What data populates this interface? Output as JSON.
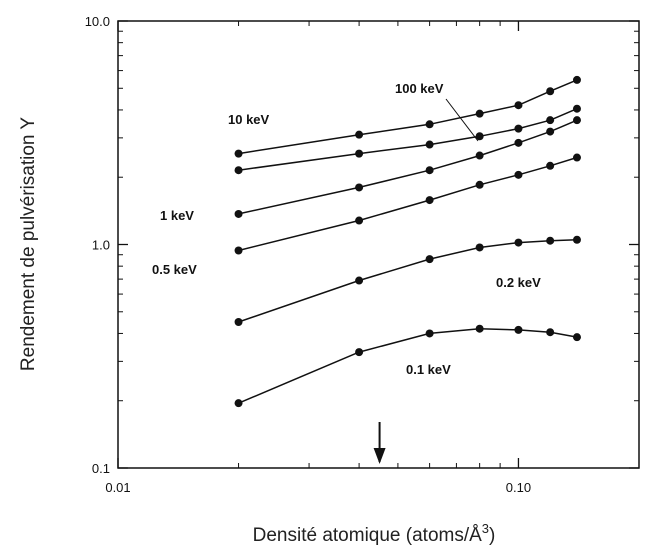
{
  "chart_data": {
    "type": "line",
    "xlabel": "Densité atomique (atoms/Å",
    "xlabel_sup": "3",
    "xlabel_end": ")",
    "ylabel": "Rendement de pulvérisation Y",
    "x_scale": "log",
    "y_scale": "log",
    "xlim": [
      0.01,
      0.2
    ],
    "ylim": [
      0.1,
      10.0
    ],
    "x_ticks": [
      {
        "value": 0.01,
        "label": "0.01"
      },
      {
        "value": 0.1,
        "label": "0.10"
      }
    ],
    "y_ticks": [
      {
        "value": 0.1,
        "label": "0.1"
      },
      {
        "value": 1.0,
        "label": "1.0"
      },
      {
        "value": 10.0,
        "label": "10.0"
      }
    ],
    "grid": false,
    "arrow_annotation_x": 0.045,
    "x": [
      0.02,
      0.04,
      0.06,
      0.08,
      0.1,
      0.12,
      0.14
    ],
    "series": [
      {
        "name": "100 keV",
        "values": [
          2.55,
          3.1,
          3.45,
          3.85,
          4.2,
          4.85,
          5.45
        ]
      },
      {
        "name": "10 keV",
        "values": [
          2.15,
          2.55,
          2.8,
          3.05,
          3.3,
          3.6,
          4.05
        ]
      },
      {
        "name": "1 keV",
        "values": [
          1.37,
          1.8,
          2.15,
          2.5,
          2.85,
          3.2,
          3.6
        ]
      },
      {
        "name": "0.5 keV",
        "values": [
          0.94,
          1.28,
          1.58,
          1.85,
          2.05,
          2.25,
          2.45
        ]
      },
      {
        "name": "0.2 keV",
        "values": [
          0.45,
          0.69,
          0.86,
          0.97,
          1.02,
          1.04,
          1.05
        ]
      },
      {
        "name": "0.1 keV",
        "values": [
          0.195,
          0.33,
          0.4,
          0.42,
          0.415,
          0.405,
          0.385
        ]
      }
    ]
  }
}
